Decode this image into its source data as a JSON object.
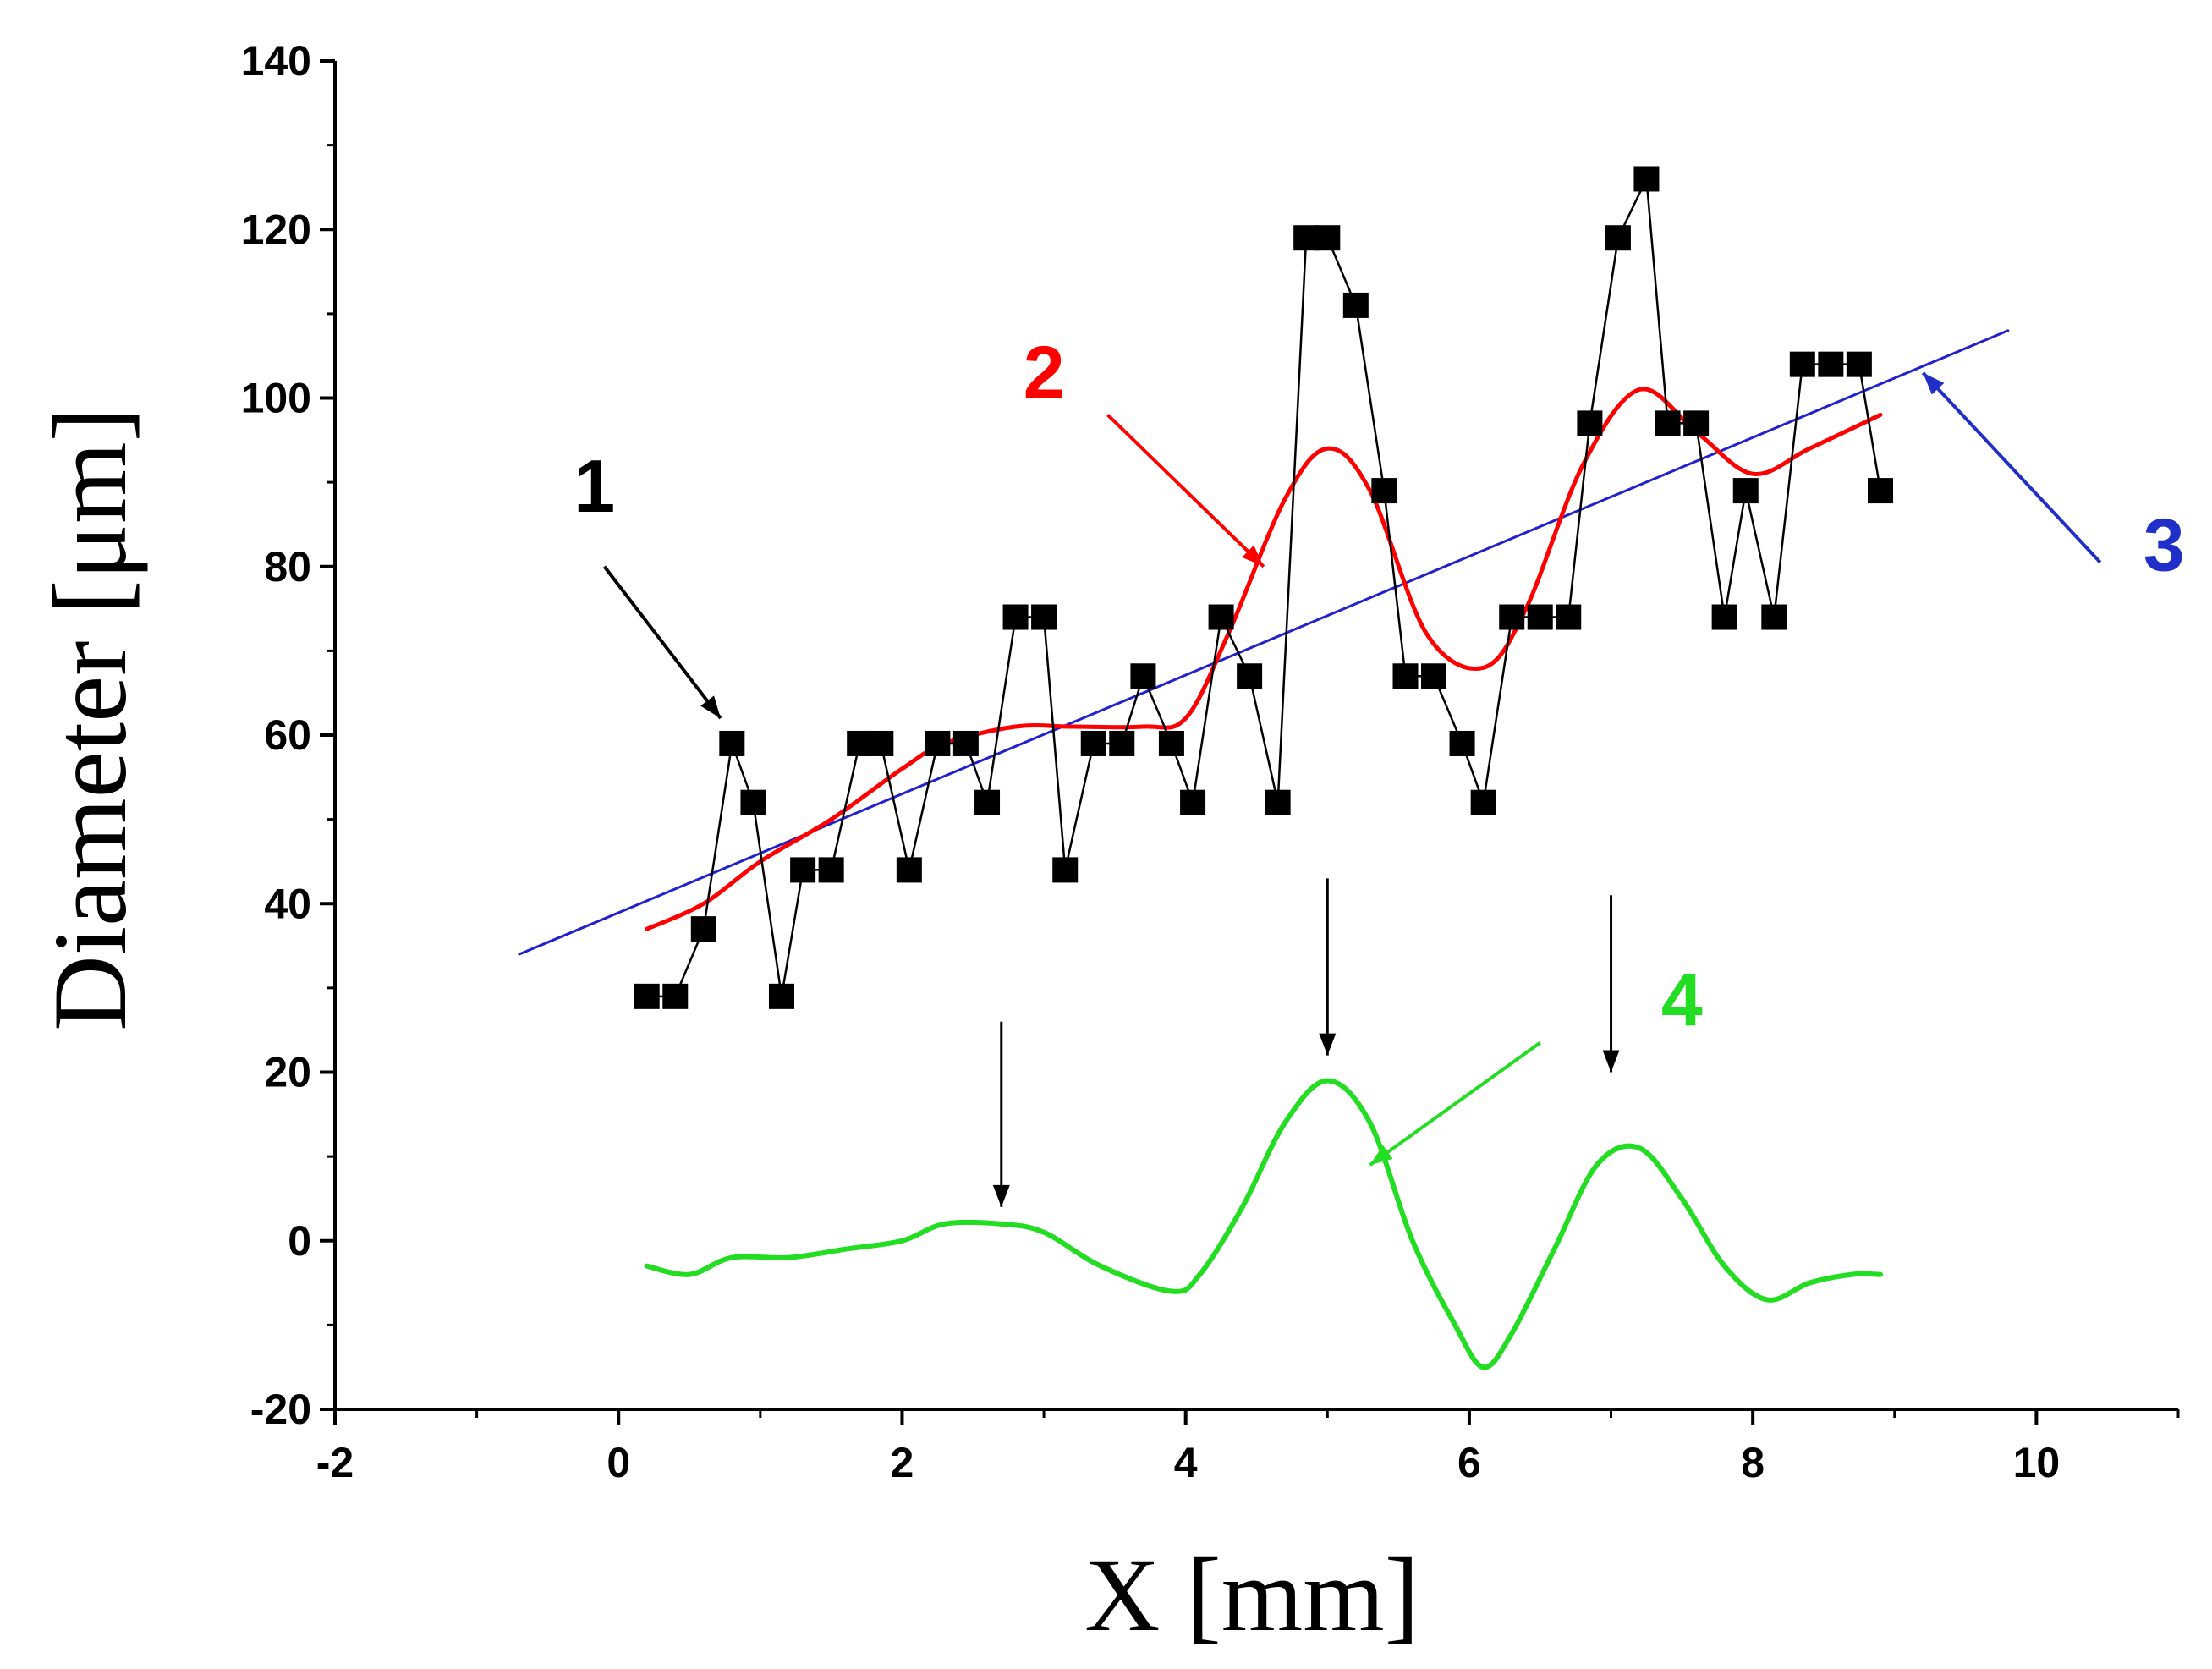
{
  "chart_data": {
    "type": "line",
    "title": "",
    "xlabel": "X [mm]",
    "ylabel": "Diameter [μm]",
    "xlim": [
      -2,
      11
    ],
    "ylim": [
      -20,
      140
    ],
    "x_ticks": [
      -2,
      0,
      2,
      4,
      6,
      8,
      10
    ],
    "y_ticks": [
      -20,
      0,
      20,
      40,
      60,
      80,
      100,
      120,
      140
    ],
    "grid": false,
    "legend": "none",
    "colors": {
      "measured": "#000000",
      "smoothed": "#ff0000",
      "trend": "#2222cc",
      "residual": "#22dd22",
      "label_1": "#000000",
      "label_2": "#ff0000",
      "label_3": "#1f2fc8",
      "label_4": "#22dd22"
    },
    "series": [
      {
        "name": "1",
        "style": "line+square-markers",
        "x": [
          0.2,
          0.4,
          0.6,
          0.8,
          0.95,
          1.15,
          1.3,
          1.5,
          1.7,
          1.85,
          2.05,
          2.25,
          2.45,
          2.6,
          2.8,
          3.0,
          3.15,
          3.35,
          3.55,
          3.7,
          3.9,
          4.05,
          4.25,
          4.45,
          4.65,
          4.85,
          5.0,
          5.2,
          5.4,
          5.55,
          5.75,
          5.95,
          6.1,
          6.3,
          6.5,
          6.7,
          6.85,
          7.05,
          7.25,
          7.4,
          7.6,
          7.8,
          7.95,
          8.15,
          8.35,
          8.55,
          8.75,
          8.9
        ],
        "y": [
          29,
          29,
          37,
          59,
          52,
          29,
          44,
          44,
          59,
          59,
          44,
          59,
          59,
          52,
          74,
          74,
          44,
          59,
          59,
          67,
          59,
          52,
          74,
          67,
          52,
          119,
          119,
          111,
          89,
          67,
          67,
          59,
          52,
          74,
          74,
          74,
          97,
          119,
          126,
          97,
          97,
          74,
          89,
          74,
          104,
          104,
          104,
          89
        ]
      },
      {
        "name": "2",
        "style": "smooth-line",
        "x": [
          0.2,
          0.6,
          1.0,
          1.5,
          2.0,
          2.3,
          2.8,
          3.2,
          3.7,
          4.0,
          4.3,
          4.7,
          5.0,
          5.3,
          5.7,
          6.1,
          6.4,
          6.8,
          7.2,
          7.6,
          8.0,
          8.4,
          8.9
        ],
        "y": [
          37,
          40,
          45,
          50,
          56,
          59,
          61,
          61,
          61,
          62,
          72,
          88,
          94,
          89,
          72,
          68,
          75,
          92,
          101,
          96,
          91,
          94,
          98
        ]
      },
      {
        "name": "3",
        "style": "straight-line",
        "x": [
          -0.7,
          9.8
        ],
        "y": [
          34,
          108
        ]
      },
      {
        "name": "4",
        "style": "smooth-line",
        "x": [
          0.2,
          0.5,
          0.8,
          1.2,
          1.6,
          2.0,
          2.3,
          2.7,
          3.0,
          3.4,
          3.9,
          4.1,
          4.4,
          4.7,
          5.0,
          5.3,
          5.6,
          5.9,
          6.1,
          6.3,
          6.6,
          6.9,
          7.2,
          7.5,
          7.8,
          8.1,
          8.4,
          8.7,
          8.9
        ],
        "y": [
          -3,
          -4,
          -2,
          -2,
          -1,
          0,
          2,
          2,
          1,
          -3,
          -6,
          -4,
          4,
          14,
          19,
          14,
          0,
          -10,
          -15,
          -11,
          -1,
          9,
          11,
          5,
          -3,
          -7,
          -5,
          -4,
          -4
        ]
      }
    ],
    "annotations": [
      {
        "label": "1",
        "text_at": [
          -0.17,
          86.5
        ],
        "arrow_from": [
          -0.1,
          80
        ],
        "arrow_to": [
          0.72,
          62
        ]
      },
      {
        "label": "2",
        "text_at": [
          3.0,
          100
        ],
        "arrow_from": [
          3.45,
          98
        ],
        "arrow_to": [
          4.55,
          80
        ]
      },
      {
        "label": "3",
        "text_at": [
          10.9,
          79.5
        ],
        "arrow_from": [
          10.45,
          80.5
        ],
        "arrow_to": [
          9.2,
          103
        ]
      },
      {
        "label": "4",
        "text_at": [
          7.5,
          25.5
        ],
        "arrow_from": [
          6.5,
          23.5
        ],
        "arrow_to": [
          5.3,
          9
        ]
      },
      {
        "label": "",
        "arrow_from": [
          2.7,
          26
        ],
        "arrow_to": [
          2.7,
          4
        ]
      },
      {
        "label": "",
        "arrow_from": [
          5.0,
          43
        ],
        "arrow_to": [
          5.0,
          22
        ]
      },
      {
        "label": "",
        "arrow_from": [
          7.0,
          41
        ],
        "arrow_to": [
          7.0,
          20
        ]
      }
    ]
  }
}
